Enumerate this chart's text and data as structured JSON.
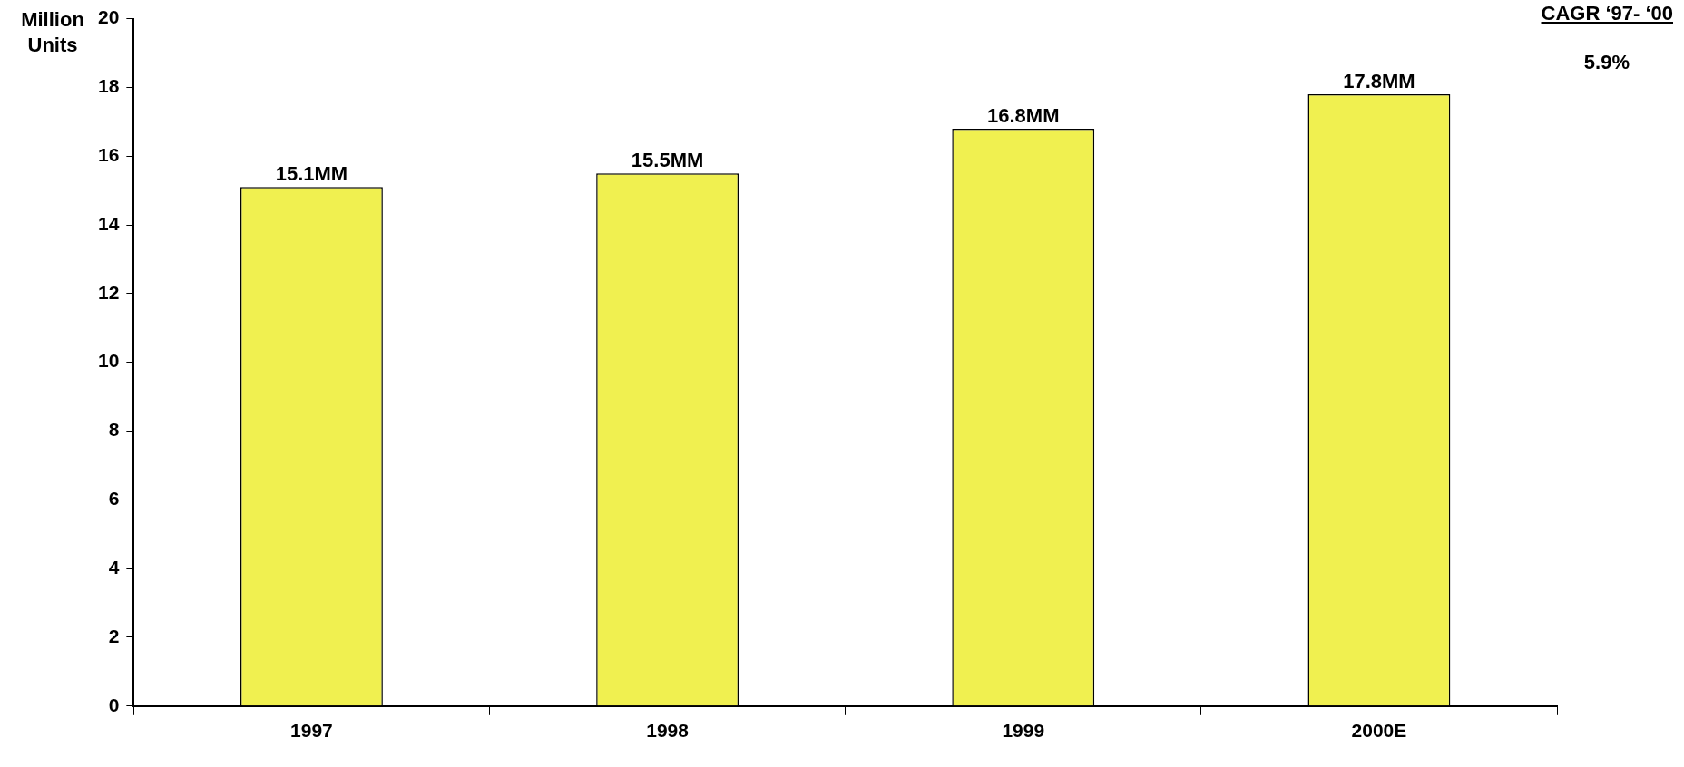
{
  "chart_data": {
    "type": "bar",
    "ylabel": "Million Units",
    "categories": [
      "1997",
      "1998",
      "1999",
      "2000E"
    ],
    "values": [
      15.1,
      15.5,
      16.8,
      17.8
    ],
    "value_labels": [
      "15.1MM",
      "15.5MM",
      "16.8MM",
      "17.8MM"
    ],
    "color": "#f0f050",
    "ylim": [
      0,
      20
    ],
    "yticks": [
      0,
      2,
      4,
      6,
      8,
      10,
      12,
      14,
      16,
      18,
      20
    ],
    "grid": false,
    "legend": false,
    "annotations": [
      "CAGR ‘97- ‘00",
      "5.9%"
    ]
  }
}
